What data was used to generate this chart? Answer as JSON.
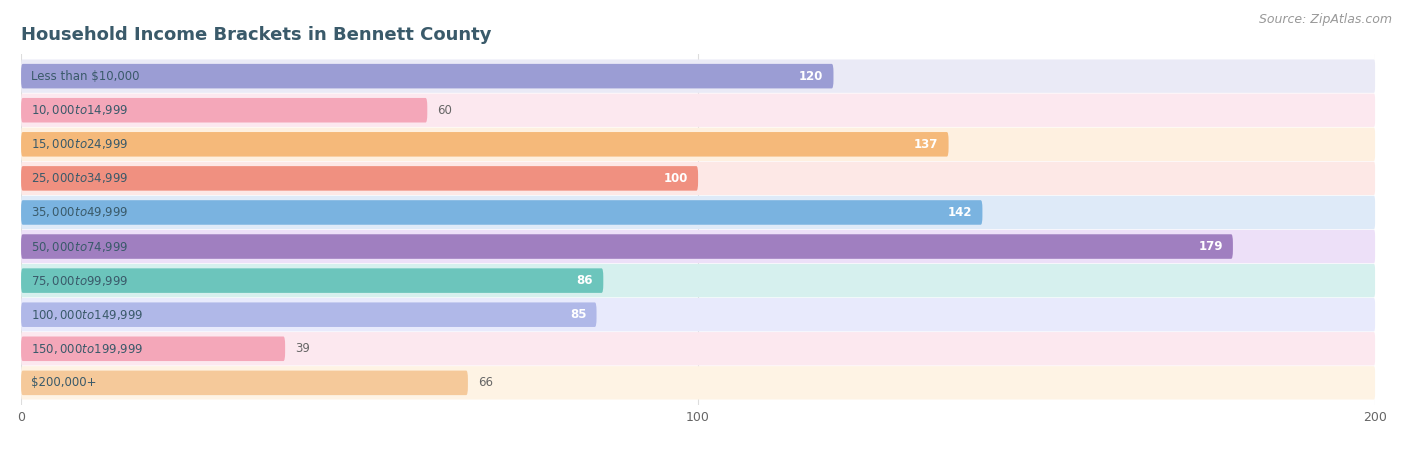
{
  "title": "Household Income Brackets in Bennett County",
  "source": "Source: ZipAtlas.com",
  "categories": [
    "Less than $10,000",
    "$10,000 to $14,999",
    "$15,000 to $24,999",
    "$25,000 to $34,999",
    "$35,000 to $49,999",
    "$50,000 to $74,999",
    "$75,000 to $99,999",
    "$100,000 to $149,999",
    "$150,000 to $199,999",
    "$200,000+"
  ],
  "values": [
    120,
    60,
    137,
    100,
    142,
    179,
    86,
    85,
    39,
    66
  ],
  "bar_colors": [
    "#9b9dd4",
    "#f4a7b9",
    "#f5b97a",
    "#f09080",
    "#7ab3e0",
    "#a07fc0",
    "#6cc5bc",
    "#b0b8e8",
    "#f4a7b9",
    "#f5c99a"
  ],
  "bar_bg_colors": [
    "#eaeaf6",
    "#fce8ef",
    "#fef0e0",
    "#fde8e6",
    "#deeaf8",
    "#ede0f8",
    "#d6f0ee",
    "#e8eafc",
    "#fce8ef",
    "#fef3e4"
  ],
  "xlim_data": [
    0,
    200
  ],
  "xticks": [
    0,
    100,
    200
  ],
  "bg_color": "#ffffff",
  "row_bg_color": "#f0f0f0",
  "title_color": "#3a5a6a",
  "label_color": "#3a5a6a",
  "value_color_inside": "#ffffff",
  "value_color_outside": "#666666",
  "source_color": "#999999",
  "grid_color": "#dddddd",
  "title_fontsize": 13,
  "label_fontsize": 8.5,
  "value_fontsize": 8.5,
  "source_fontsize": 9,
  "tick_fontsize": 9,
  "bar_height": 0.72,
  "inside_threshold": 70
}
